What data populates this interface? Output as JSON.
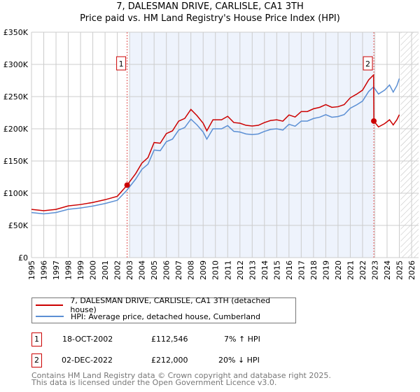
{
  "chart_data": {
    "type": "line",
    "title": "7, DALESMAN DRIVE, CARLISLE, CA1 3TH",
    "subtitle": "Price paid vs. HM Land Registry's House Price Index (HPI)",
    "xlabel": "",
    "ylabel": "",
    "xlim": [
      1995,
      2026
    ],
    "ylim": [
      0,
      350000
    ],
    "x_ticks": [
      "1995",
      "1996",
      "1997",
      "1998",
      "1999",
      "2000",
      "2001",
      "2002",
      "2003",
      "2004",
      "2005",
      "2006",
      "2007",
      "2008",
      "2009",
      "2010",
      "2011",
      "2012",
      "2013",
      "2014",
      "2015",
      "2016",
      "2017",
      "2018",
      "2019",
      "2020",
      "2021",
      "2022",
      "2023",
      "2024",
      "2025",
      "2026"
    ],
    "y_ticks": [
      {
        "v": 0,
        "l": "£0"
      },
      {
        "v": 50000,
        "l": "£50K"
      },
      {
        "v": 100000,
        "l": "£100K"
      },
      {
        "v": 150000,
        "l": "£150K"
      },
      {
        "v": 200000,
        "l": "£200K"
      },
      {
        "v": 250000,
        "l": "£250K"
      },
      {
        "v": 300000,
        "l": "£300K"
      },
      {
        "v": 350000,
        "l": "£350K"
      }
    ],
    "grid": true,
    "shaded_period": [
      2003.0,
      2022.92
    ],
    "forecast_hatch_from": 2025.1,
    "series": [
      {
        "name": "7, DALESMAN DRIVE, CARLISLE, CA1 3TH (detached house)",
        "color": "#cc0000",
        "points": [
          [
            1995,
            74900
          ],
          [
            1996,
            72800
          ],
          [
            1997,
            74900
          ],
          [
            1998,
            80300
          ],
          [
            1999,
            82400
          ],
          [
            2000,
            85600
          ],
          [
            2001,
            89900
          ],
          [
            2002,
            95200
          ],
          [
            2002.8,
            112500
          ],
          [
            2003.5,
            130500
          ],
          [
            2004,
            146600
          ],
          [
            2004.5,
            155200
          ],
          [
            2005,
            178700
          ],
          [
            2005.5,
            177600
          ],
          [
            2006,
            192600
          ],
          [
            2006.5,
            196900
          ],
          [
            2007,
            211900
          ],
          [
            2007.5,
            216100
          ],
          [
            2008,
            230100
          ],
          [
            2008.5,
            220400
          ],
          [
            2009,
            208700
          ],
          [
            2009.3,
            196900
          ],
          [
            2009.8,
            214000
          ],
          [
            2010.5,
            214000
          ],
          [
            2011,
            219400
          ],
          [
            2011.5,
            209700
          ],
          [
            2012,
            208700
          ],
          [
            2012.5,
            205400
          ],
          [
            2013,
            204400
          ],
          [
            2013.5,
            205400
          ],
          [
            2014,
            209700
          ],
          [
            2014.5,
            212900
          ],
          [
            2015,
            214000
          ],
          [
            2015.5,
            211900
          ],
          [
            2016,
            221500
          ],
          [
            2016.5,
            218300
          ],
          [
            2017,
            226800
          ],
          [
            2017.5,
            226800
          ],
          [
            2018,
            231100
          ],
          [
            2018.5,
            233300
          ],
          [
            2019,
            237500
          ],
          [
            2019.5,
            233300
          ],
          [
            2020,
            234300
          ],
          [
            2020.5,
            237500
          ],
          [
            2021,
            248200
          ],
          [
            2021.5,
            253600
          ],
          [
            2022,
            260000
          ],
          [
            2022.5,
            276000
          ],
          [
            2022.9,
            283600
          ],
          [
            2022.92,
            212000
          ],
          [
            2023.3,
            203000
          ],
          [
            2023.8,
            208000
          ],
          [
            2024.2,
            214000
          ],
          [
            2024.5,
            206000
          ],
          [
            2024.8,
            214000
          ],
          [
            2025.0,
            222000
          ]
        ]
      },
      {
        "name": "HPI: Average price, detached house, Cumberland",
        "color": "#5b8fd4",
        "points": [
          [
            1995,
            70000
          ],
          [
            1996,
            68000
          ],
          [
            1997,
            70000
          ],
          [
            1998,
            75000
          ],
          [
            1999,
            77000
          ],
          [
            2000,
            80000
          ],
          [
            2001,
            84000
          ],
          [
            2002,
            89000
          ],
          [
            2002.8,
            105000
          ],
          [
            2003.5,
            122000
          ],
          [
            2004,
            137000
          ],
          [
            2004.5,
            145000
          ],
          [
            2005,
            167000
          ],
          [
            2005.5,
            166000
          ],
          [
            2006,
            180000
          ],
          [
            2006.5,
            184000
          ],
          [
            2007,
            198000
          ],
          [
            2007.5,
            202000
          ],
          [
            2008,
            215000
          ],
          [
            2008.5,
            206000
          ],
          [
            2009,
            195000
          ],
          [
            2009.3,
            184000
          ],
          [
            2009.8,
            200000
          ],
          [
            2010.5,
            200000
          ],
          [
            2011,
            205000
          ],
          [
            2011.5,
            196000
          ],
          [
            2012,
            195000
          ],
          [
            2012.5,
            192000
          ],
          [
            2013,
            191000
          ],
          [
            2013.5,
            192000
          ],
          [
            2014,
            196000
          ],
          [
            2014.5,
            199000
          ],
          [
            2015,
            200000
          ],
          [
            2015.5,
            198000
          ],
          [
            2016,
            207000
          ],
          [
            2016.5,
            204000
          ],
          [
            2017,
            212000
          ],
          [
            2017.5,
            212000
          ],
          [
            2018,
            216000
          ],
          [
            2018.5,
            218000
          ],
          [
            2019,
            222000
          ],
          [
            2019.5,
            218000
          ],
          [
            2020,
            219000
          ],
          [
            2020.5,
            222000
          ],
          [
            2021,
            232000
          ],
          [
            2021.5,
            237000
          ],
          [
            2022,
            243000
          ],
          [
            2022.5,
            258000
          ],
          [
            2022.9,
            265000
          ],
          [
            2023.3,
            254000
          ],
          [
            2023.8,
            260000
          ],
          [
            2024.2,
            268000
          ],
          [
            2024.5,
            257000
          ],
          [
            2024.8,
            267000
          ],
          [
            2025.0,
            278000
          ]
        ]
      }
    ],
    "sales": [
      {
        "label": "1",
        "x": 2002.8,
        "y": 112546
      },
      {
        "label": "2",
        "x": 2022.92,
        "y": 212000
      }
    ]
  },
  "legend": {
    "property": "7, DALESMAN DRIVE, CARLISLE, CA1 3TH (detached house)",
    "hpi": "HPI: Average price, detached house, Cumberland"
  },
  "transactions": [
    {
      "num": "1",
      "date": "18-OCT-2002",
      "price": "£112,546",
      "hpi": "7% ↑ HPI"
    },
    {
      "num": "2",
      "date": "02-DEC-2022",
      "price": "£212,000",
      "hpi": "20% ↓ HPI"
    }
  ],
  "footer": {
    "line1": "Contains HM Land Registry data © Crown copyright and database right 2025.",
    "line2": "This data is licensed under the Open Government Licence v3.0."
  }
}
